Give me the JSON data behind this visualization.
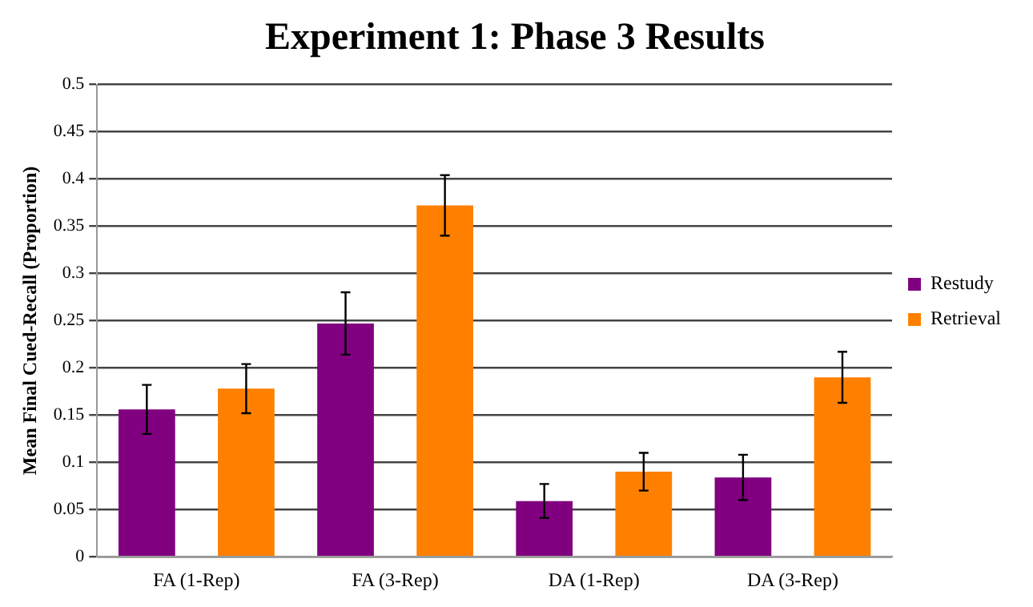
{
  "chart_data": {
    "type": "bar",
    "title": "Experiment 1: Phase 3 Results",
    "ylabel": "Mean Final Cued-Recall (Proportion)",
    "categories": [
      "FA (1-Rep)",
      "FA (3-Rep)",
      "DA (1-Rep)",
      "DA (3-Rep)"
    ],
    "series": [
      {
        "name": "Restudy",
        "color": "#800080",
        "values": [
          0.156,
          0.247,
          0.059,
          0.084
        ],
        "errors": [
          0.026,
          0.033,
          0.018,
          0.024
        ]
      },
      {
        "name": "Retrieval",
        "color": "#ff8000",
        "values": [
          0.178,
          0.372,
          0.09,
          0.19
        ],
        "errors": [
          0.026,
          0.032,
          0.02,
          0.027
        ]
      }
    ],
    "ylim": [
      0,
      0.5
    ],
    "yticks": [
      0,
      0.05,
      0.1,
      0.15,
      0.2,
      0.25,
      0.3,
      0.35,
      0.4,
      0.45,
      0.5
    ],
    "grid": "y",
    "legend": "right"
  }
}
